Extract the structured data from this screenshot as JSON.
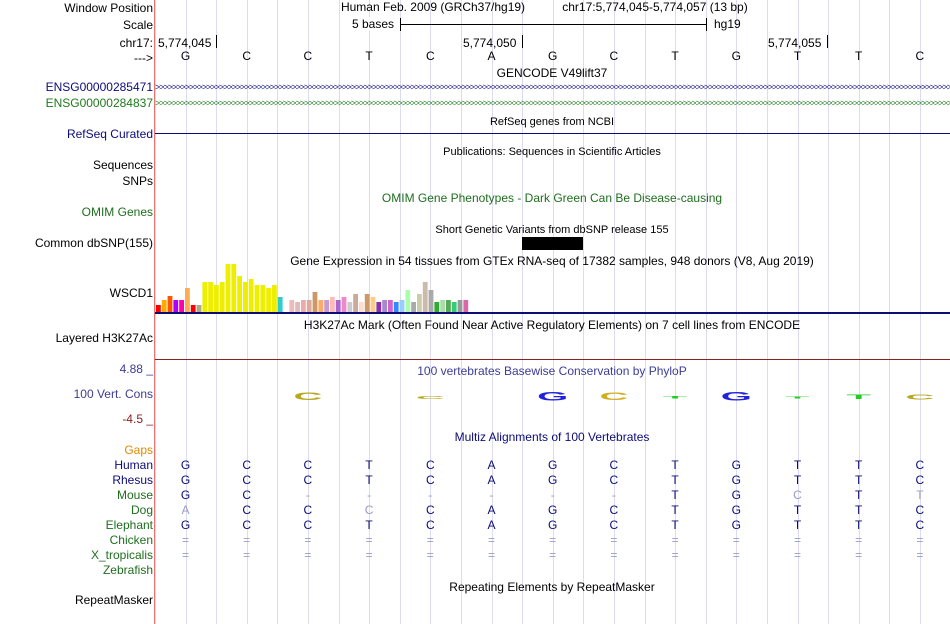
{
  "window_position": {
    "label": "Window Position",
    "assembly": "Human Feb. 2009 (GRCh37/hg19)",
    "region": "chr17:5,774,045-5,774,057 (13 bp)"
  },
  "scale": {
    "label": "Scale",
    "bar_text": "5 bases",
    "assembly_short": "hg19"
  },
  "ruler": {
    "chrom_label": "chr17:",
    "positions": [
      "5,774,045",
      "5,774,050",
      "5,774,055"
    ],
    "arrow_label": "--->"
  },
  "sequence": [
    "G",
    "C",
    "C",
    "T",
    "C",
    "A",
    "G",
    "C",
    "T",
    "G",
    "T",
    "T",
    "C"
  ],
  "tracks": {
    "gencode": {
      "title": "GENCODE V49lift37",
      "genes": [
        {
          "name": "ENSG00000285471",
          "color": "#0c0c78"
        },
        {
          "name": "ENSG00000284837",
          "color": "#1e7a1e"
        }
      ]
    },
    "refseq": {
      "label": "RefSeq Curated",
      "title": "RefSeq genes from NCBI",
      "color": "#0c0c78"
    },
    "publications": {
      "title": "Publications: Sequences in Scientific Articles",
      "labels": [
        "Sequences",
        "SNPs"
      ]
    },
    "omim": {
      "label": "OMIM Genes",
      "title": "OMIM Gene Phenotypes - Dark Green Can Be Disease-causing",
      "color": "#1e6e1e"
    },
    "dbsnp": {
      "label": "Common dbSNP(155)",
      "title": "Short Genetic Variants from dbSNP release 155"
    },
    "gtex": {
      "label": "WSCD1",
      "title": "Gene Expression in 54 tissues from GTEx RNA-seq of 17382 samples, 948 donors (V8, Aug 2019)"
    },
    "h3k27ac": {
      "label": "Layered H3K27Ac",
      "title": "H3K27Ac Mark (Often Found Near Active Regulatory Elements) on 7 cell lines from ENCODE"
    },
    "phylop": {
      "label": "100 Vert. Cons",
      "title": "100 vertebrates Basewise Conservation by PhyloP",
      "max": "4.88 _",
      "min": "-4.5 _",
      "color": "#3c3c96"
    },
    "multiz": {
      "title": "Multiz Alignments of 100 Vertebrates",
      "gaps_label": "Gaps",
      "species": [
        {
          "name": "Human",
          "color": "#0c0c78",
          "bases": [
            "G",
            "C",
            "C",
            "T",
            "C",
            "A",
            "G",
            "C",
            "T",
            "G",
            "T",
            "T",
            "C"
          ]
        },
        {
          "name": "Rhesus",
          "color": "#0c0c78",
          "bases": [
            "G",
            "C",
            "C",
            "T",
            "C",
            "A",
            "G",
            "C",
            "T",
            "G",
            "T",
            "T",
            "C"
          ]
        },
        {
          "name": "Mouse",
          "color": "#1e6e1e",
          "bases": [
            "G",
            "C",
            "-",
            "-",
            "-",
            "-",
            "-",
            "-",
            "T",
            "G",
            "C",
            "T",
            "T"
          ]
        },
        {
          "name": "Dog",
          "color": "#1e6e1e",
          "bases": [
            "A",
            "C",
            "C",
            "C",
            "C",
            "A",
            "G",
            "C",
            "T",
            "G",
            "T",
            "T",
            "C"
          ]
        },
        {
          "name": "Elephant",
          "color": "#1e6e1e",
          "bases": [
            "G",
            "C",
            "C",
            "T",
            "C",
            "A",
            "G",
            "C",
            "T",
            "G",
            "T",
            "T",
            "C"
          ]
        },
        {
          "name": "Chicken",
          "color": "#1e6e1e",
          "bases": [
            "=",
            "=",
            "=",
            "=",
            "=",
            "=",
            "=",
            "=",
            "=",
            "=",
            "=",
            "=",
            "="
          ]
        },
        {
          "name": "X_tropicalis",
          "color": "#1e6e1e",
          "bases": [
            "=",
            "=",
            "=",
            "=",
            "=",
            "=",
            "=",
            "=",
            "=",
            "=",
            "=",
            "=",
            "="
          ]
        },
        {
          "name": "Zebrafish",
          "color": "#1e6e1e",
          "bases": []
        }
      ]
    },
    "repeatmasker": {
      "label": "RepeatMasker",
      "title": "Repeating Elements by RepeatMasker"
    }
  }
}
